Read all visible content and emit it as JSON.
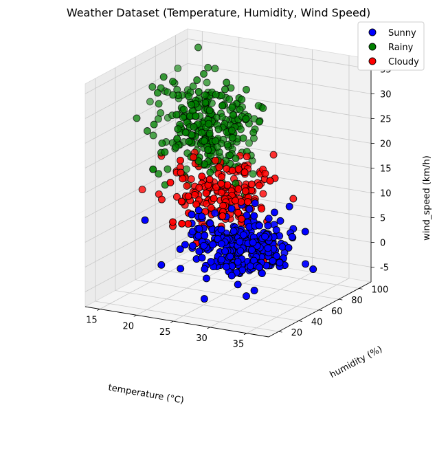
{
  "chart_data": {
    "type": "scatter",
    "projection": "3d",
    "title": "Weather Dataset (Temperature, Humidity, Wind Speed)",
    "xlabel": "temperature (°C)",
    "ylabel": "humidity (%)",
    "zlabel": "wind_speed (km/h)",
    "xlim": [
      13,
      38
    ],
    "ylim": [
      10,
      112
    ],
    "zlim": [
      -8,
      37
    ],
    "x_ticks": [
      15,
      20,
      25,
      30,
      35
    ],
    "y_ticks": [
      20,
      40,
      60,
      80,
      100
    ],
    "z_ticks": [
      -5,
      0,
      5,
      10,
      15,
      20,
      25,
      30,
      35
    ],
    "grid": true,
    "legend_position": "top-right",
    "series": [
      {
        "name": "Sunny",
        "color": "#0000ff",
        "count": 300,
        "x_mean": 30,
        "x_sd": 3.2,
        "y_mean": 40,
        "y_sd": 10,
        "z_mean": 5,
        "z_sd": 3
      },
      {
        "name": "Rainy",
        "color": "#008000",
        "count": 300,
        "x_mean": 20,
        "x_sd": 3.2,
        "y_mean": 80,
        "y_sd": 10,
        "z_mean": 22,
        "z_sd": 5
      },
      {
        "name": "Cloudy",
        "color": "#ff0000",
        "count": 200,
        "x_mean": 25,
        "x_sd": 3,
        "y_mean": 60,
        "y_sd": 10,
        "z_mean": 12,
        "z_sd": 3.5
      }
    ]
  }
}
